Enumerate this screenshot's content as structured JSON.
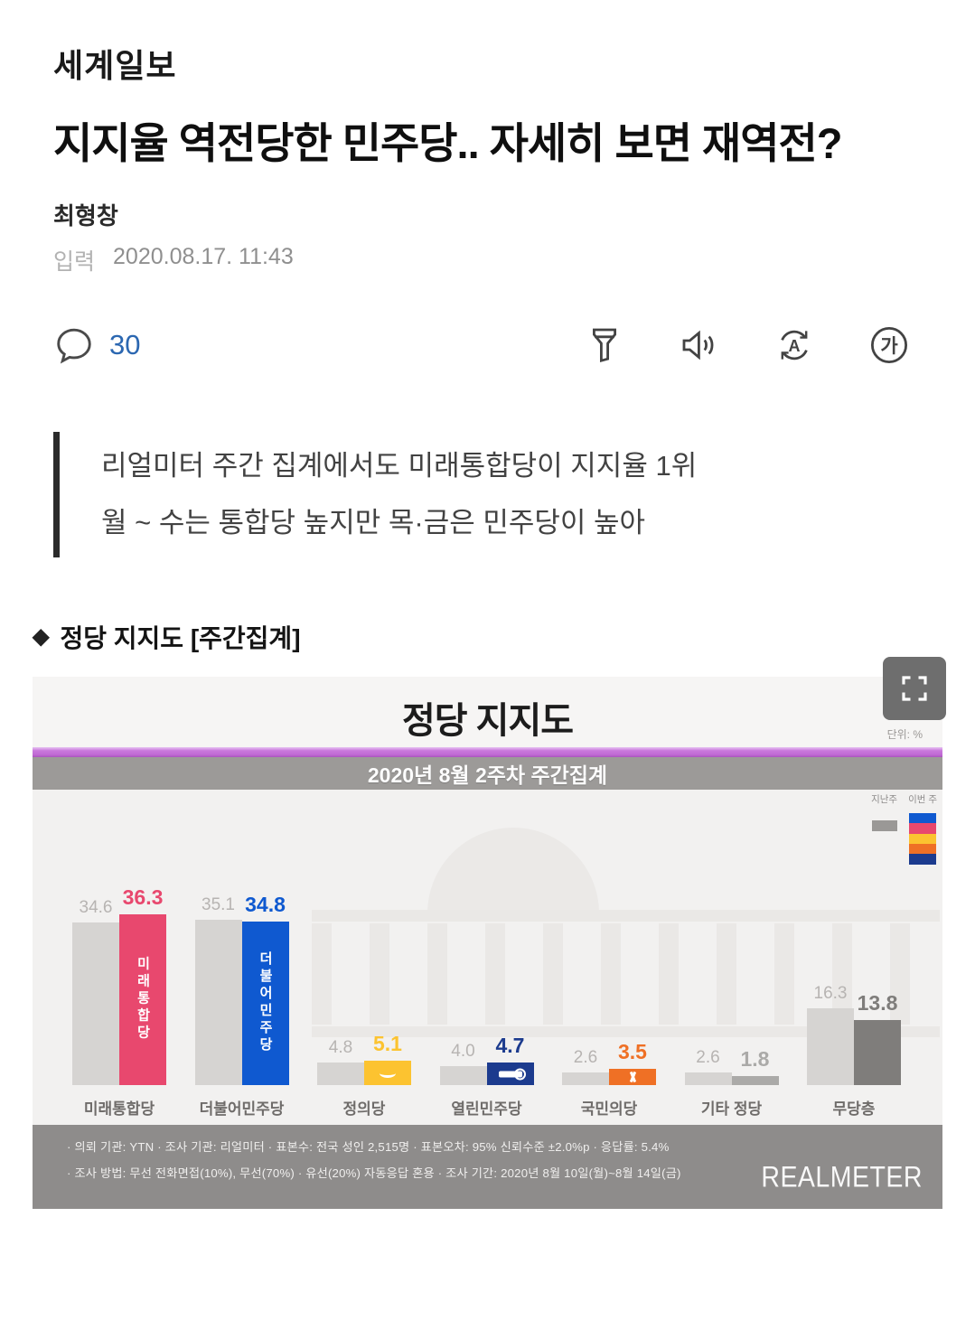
{
  "brand": {
    "logo_text": "세계일보"
  },
  "article": {
    "headline": "지지율 역전당한 민주당.. 자세히 보면 재역전?",
    "author": "최형창",
    "date_label": "입력",
    "date": "2020.08.17. 11:43",
    "comment_count": "30",
    "quote_lines": [
      "리얼미터 주간 집계에서도 미래통합당이 지지율 1위",
      "월 ~ 수는 통합당 높지만 목·금은 민주당이 높아"
    ],
    "section_marker": "◆",
    "section_title": "정당 지지도 [주간집계]"
  },
  "icons": {
    "comment": "speech-bubble",
    "summary_filter": "funnel",
    "text_to_speech": "speaker",
    "translate": "refresh-A",
    "font_size": "ga-in-circle",
    "expand": "fullscreen-corners"
  },
  "colors": {
    "comment_accent": "#2b67b1",
    "purple_stripe": "#c06ad4",
    "subtitle_band": "#9c9a98",
    "footer_band": "#8e8c8b",
    "last_week_bar": "#d6d4d2"
  },
  "chart_data": {
    "type": "bar",
    "title": "정당 지지도",
    "subtitle": "2020년 8월 2주차 주간집계",
    "unit_label": "단위: %",
    "categories": [
      "미래통합당",
      "더불어민주당",
      "정의당",
      "열린민주당",
      "국민의당",
      "기타 정당",
      "무당층"
    ],
    "series": [
      {
        "name": "지난주",
        "values": [
          34.6,
          35.1,
          4.8,
          4.0,
          2.6,
          2.6,
          16.3
        ],
        "color": "#d6d4d2"
      },
      {
        "name": "이번 주",
        "values": [
          36.3,
          34.8,
          5.1,
          4.7,
          3.5,
          1.8,
          13.8
        ],
        "colors": [
          "#e8486e",
          "#0f59d0",
          "#fcc330",
          "#1c3b8e",
          "#ef7025",
          "#abaaa8",
          "#7f7d7b"
        ]
      }
    ],
    "ylim": [
      0,
      40
    ],
    "grid": false,
    "legend_position": "top-right",
    "legend": {
      "last_label": "지난주",
      "this_label": "이번 주",
      "this_swatch_colors": [
        "#0f59d0",
        "#e8486e",
        "#fcc330",
        "#ef7025",
        "#1c3b8e"
      ]
    },
    "in_bar_labels": [
      "미래통합당",
      "더불어민주당"
    ],
    "footnotes": [
      "· 의뢰 기관: YTN  · 조사 기관: 리얼미터  · 표본수: 전국 성인 2,515명  · 표본오차: 95% 신뢰수준 ±2.0%p  · 응답률: 5.4%",
      "· 조사 방법: 무선 전화면접(10%), 무선(70%) · 유선(20%) 자동응답 혼용  · 조사 기간: 2020년 8월 10일(월)~8월 14일(금)"
    ],
    "branding": "REALMETER"
  }
}
